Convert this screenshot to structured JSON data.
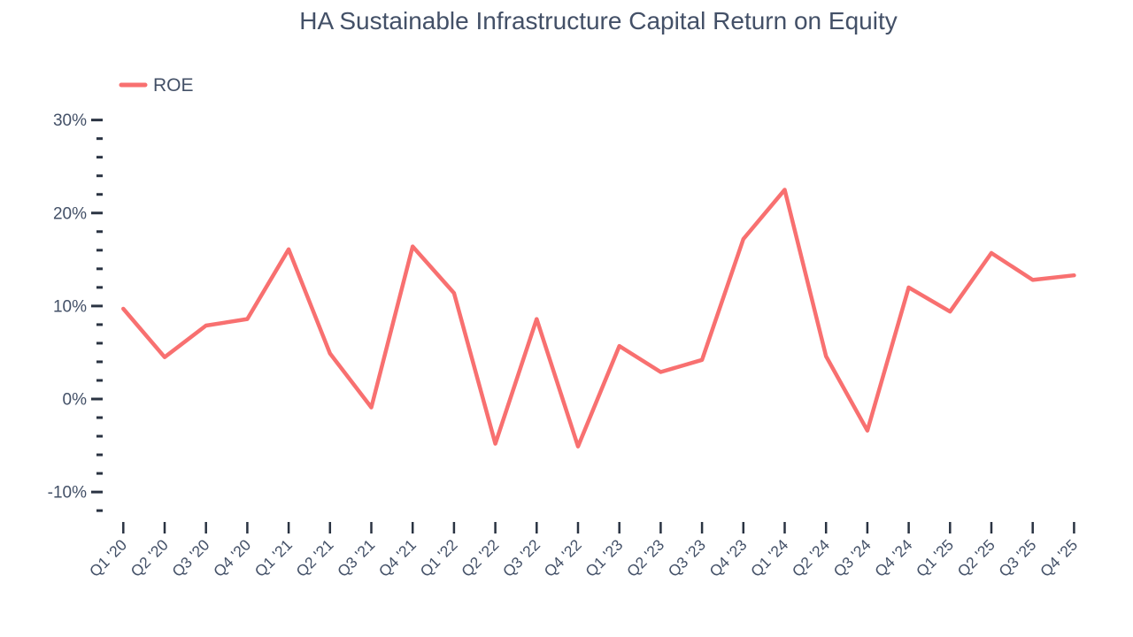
{
  "header": {
    "title": "HA Sustainable Infrastructure Capital Return on Equity"
  },
  "legend": {
    "items": [
      {
        "label": "ROE",
        "color": "#F87070"
      }
    ],
    "position": "top-left"
  },
  "colors": {
    "series_line": "#F87070",
    "text": "#435067",
    "tick_mark": "#2A3342",
    "background": "#FFFFFF"
  },
  "chart_data": {
    "type": "line",
    "title": "HA Sustainable Infrastructure Capital Return on Equity",
    "categories": [
      "Q1 '20",
      "Q2 '20",
      "Q3 '20",
      "Q4 '20",
      "Q1 '21",
      "Q2 '21",
      "Q3 '21",
      "Q4 '21",
      "Q1 '22",
      "Q2 '22",
      "Q3 '22",
      "Q4 '22",
      "Q1 '23",
      "Q2 '23",
      "Q3 '23",
      "Q4 '23",
      "Q1 '24",
      "Q2 '24",
      "Q3 '24",
      "Q4 '24",
      "Q1 '25",
      "Q2 '25",
      "Q3 '25",
      "Q4 '25"
    ],
    "series": [
      {
        "name": "ROE",
        "color": "#F87070",
        "values": [
          9.7,
          4.5,
          7.9,
          8.6,
          16.1,
          4.9,
          -0.9,
          16.4,
          11.4,
          -4.8,
          8.6,
          -5.1,
          5.7,
          2.9,
          4.2,
          17.2,
          22.5,
          4.6,
          -3.4,
          12.0,
          9.4,
          15.7,
          12.8,
          13.3
        ]
      }
    ],
    "xlabel": "",
    "ylabel": "",
    "y_axis": {
      "unit": "%",
      "major_ticks": [
        30,
        20,
        10,
        0,
        -10
      ],
      "major_tick_labels": [
        "30%",
        "20%",
        "10%",
        "0%",
        "-10%"
      ],
      "minor_tick_step": 2,
      "range": [
        -12,
        30
      ]
    },
    "x_axis": {
      "tick_count": 24,
      "label_rotation_deg": -45
    },
    "grid": false,
    "legend_position": "top-left"
  }
}
